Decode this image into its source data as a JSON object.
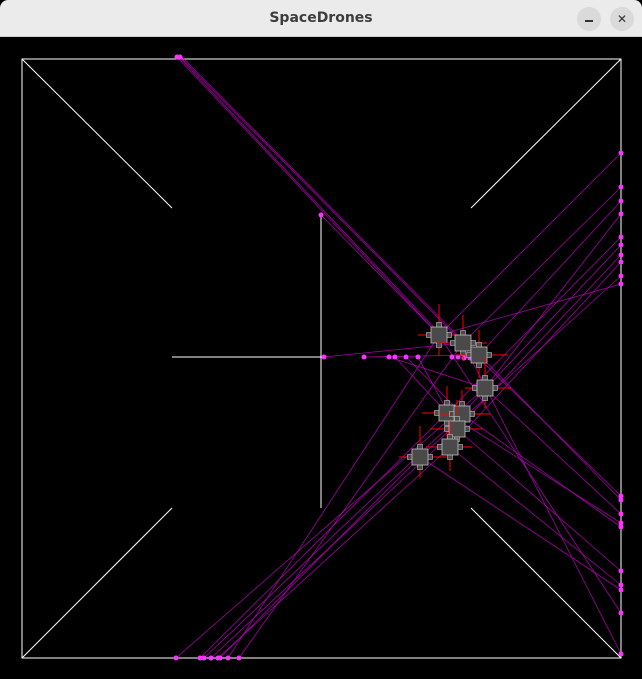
{
  "window": {
    "title": "SpaceDrones",
    "minimize_icon": "minimize-icon",
    "close_icon": "close-icon"
  },
  "colors": {
    "background": "#000000",
    "walls": "#ffffff",
    "trails": "#c000c0",
    "trail_points": "#ff33ff",
    "thrust": "#ff0000",
    "drone_body": "#4a4a4a",
    "drone_outline": "#bfbfbf"
  }
}
